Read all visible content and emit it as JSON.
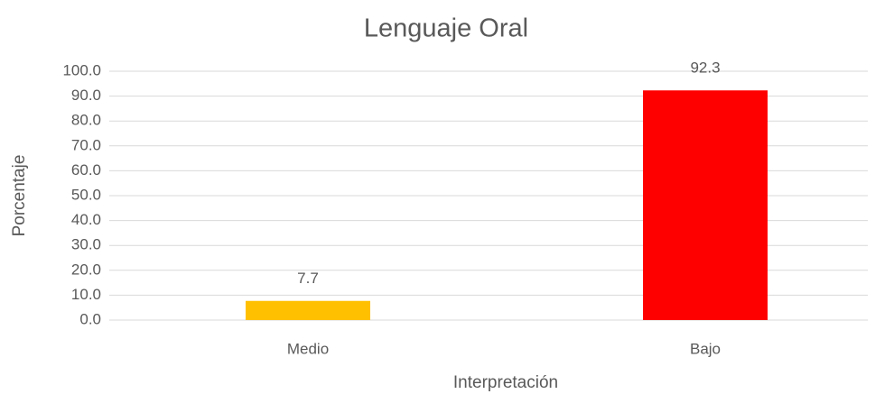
{
  "chart_data": {
    "type": "bar",
    "title": "Lenguaje Oral",
    "categories": [
      "Medio",
      "Bajo"
    ],
    "values": [
      7.7,
      92.3
    ],
    "colors": [
      "#ffc000",
      "#ff0000"
    ],
    "xlabel": "Interpretación",
    "ylabel": "Porcentaje",
    "ylim": [
      0,
      100
    ],
    "yticks": [
      {
        "value": 0,
        "label": "0.0"
      },
      {
        "value": 10,
        "label": "10.0"
      },
      {
        "value": 20,
        "label": "20.0"
      },
      {
        "value": 30,
        "label": "30.0"
      },
      {
        "value": 40,
        "label": "40.0"
      },
      {
        "value": 50,
        "label": "50.0"
      },
      {
        "value": 60,
        "label": "60.0"
      },
      {
        "value": 70,
        "label": "70.0"
      },
      {
        "value": 80,
        "label": "80.0"
      },
      {
        "value": 90,
        "label": "90.0"
      },
      {
        "value": 100,
        "label": "100.0"
      }
    ],
    "grid": true
  }
}
